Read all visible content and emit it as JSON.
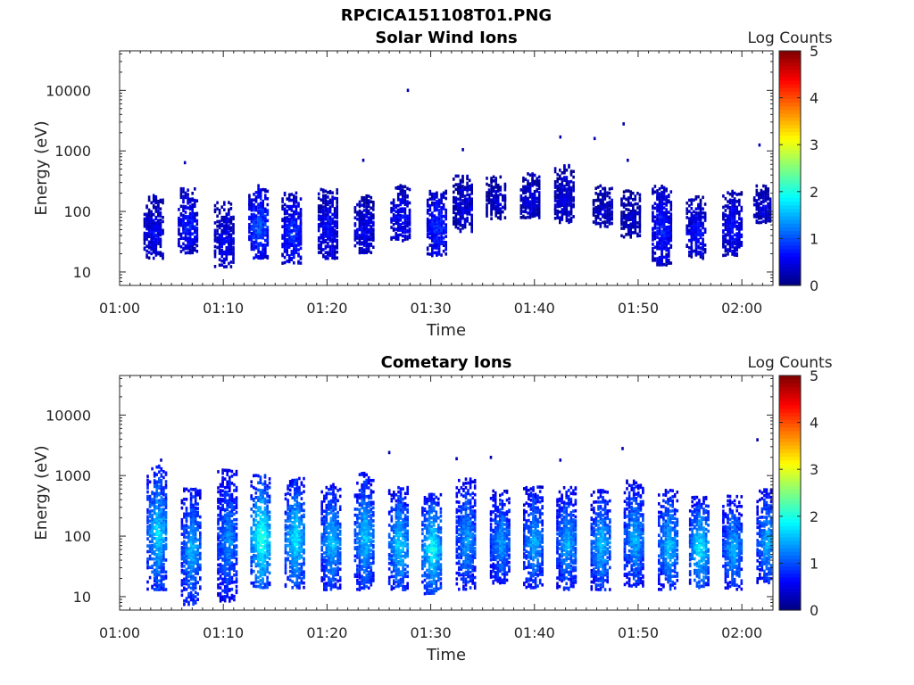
{
  "figure": {
    "title": "RPCICA151108T01.PNG"
  },
  "chart_data": [
    {
      "type": "heatmap",
      "title": "Solar Wind Ions",
      "xlabel": "Time",
      "ylabel": "Energy (eV)",
      "x_ticks": [
        "01:00",
        "01:10",
        "01:20",
        "01:30",
        "01:40",
        "01:50",
        "02:00"
      ],
      "x_range_minutes": [
        0,
        63
      ],
      "y_ticks": [
        "10",
        "100",
        "1000",
        "10000"
      ],
      "y_scale": "log",
      "y_range": [
        6,
        45000
      ],
      "colorbar": {
        "label": "Log Counts",
        "min": 0,
        "max": 5,
        "ticks": [
          "0",
          "1",
          "2",
          "3",
          "4",
          "5"
        ],
        "colormap": "jet"
      },
      "bursts": [
        {
          "t": 3.2,
          "emin": 18,
          "emax": 210,
          "peak": 0.6
        },
        {
          "t": 6.5,
          "emin": 22,
          "emax": 260,
          "peak": 0.8
        },
        {
          "t": 10.0,
          "emin": 13,
          "emax": 160,
          "peak": 0.6
        },
        {
          "t": 13.3,
          "emin": 18,
          "emax": 300,
          "peak": 1.1
        },
        {
          "t": 16.5,
          "emin": 15,
          "emax": 220,
          "peak": 0.9
        },
        {
          "t": 20.0,
          "emin": 18,
          "emax": 260,
          "peak": 0.7
        },
        {
          "t": 23.5,
          "emin": 22,
          "emax": 200,
          "peak": 0.6
        },
        {
          "t": 27.0,
          "emin": 35,
          "emax": 300,
          "peak": 0.7
        },
        {
          "t": 30.5,
          "emin": 20,
          "emax": 250,
          "peak": 0.9
        },
        {
          "t": 33.0,
          "emin": 50,
          "emax": 420,
          "peak": 0.5
        },
        {
          "t": 36.2,
          "emin": 80,
          "emax": 420,
          "peak": 0.4
        },
        {
          "t": 39.5,
          "emin": 80,
          "emax": 480,
          "peak": 0.5
        },
        {
          "t": 42.8,
          "emin": 70,
          "emax": 650,
          "peak": 0.5
        },
        {
          "t": 46.5,
          "emin": 60,
          "emax": 300,
          "peak": 0.4
        },
        {
          "t": 49.2,
          "emin": 40,
          "emax": 250,
          "peak": 0.4
        },
        {
          "t": 52.2,
          "emin": 14,
          "emax": 300,
          "peak": 0.8
        },
        {
          "t": 55.5,
          "emin": 18,
          "emax": 200,
          "peak": 0.7
        },
        {
          "t": 59.0,
          "emin": 20,
          "emax": 240,
          "peak": 0.7
        },
        {
          "t": 62.0,
          "emin": 70,
          "emax": 300,
          "peak": 0.5
        }
      ],
      "isolated_points": [
        {
          "t": 27.8,
          "e": 10000
        },
        {
          "t": 33.1,
          "e": 1050
        },
        {
          "t": 42.5,
          "e": 1700
        },
        {
          "t": 45.8,
          "e": 1600
        },
        {
          "t": 48.6,
          "e": 2800
        },
        {
          "t": 49.0,
          "e": 700
        },
        {
          "t": 61.7,
          "e": 1250
        },
        {
          "t": 23.5,
          "e": 700
        },
        {
          "t": 6.3,
          "e": 640
        }
      ]
    },
    {
      "type": "heatmap",
      "title": "Cometary Ions",
      "xlabel": "Time",
      "ylabel": "Energy (eV)",
      "x_ticks": [
        "01:00",
        "01:10",
        "01:20",
        "01:30",
        "01:40",
        "01:50",
        "02:00"
      ],
      "x_range_minutes": [
        0,
        63
      ],
      "y_ticks": [
        "10",
        "100",
        "1000",
        "10000"
      ],
      "y_scale": "log",
      "y_range": [
        6,
        45000
      ],
      "colorbar": {
        "label": "Log Counts",
        "min": 0,
        "max": 5,
        "ticks": [
          "0",
          "1",
          "2",
          "3",
          "4",
          "5"
        ],
        "colormap": "jet"
      },
      "bursts": [
        {
          "t": 3.5,
          "emin": 14,
          "emax": 1600,
          "peak": 1.8
        },
        {
          "t": 6.8,
          "emin": 8,
          "emax": 700,
          "peak": 1.6
        },
        {
          "t": 10.3,
          "emin": 9,
          "emax": 1400,
          "peak": 1.4
        },
        {
          "t": 13.5,
          "emin": 15,
          "emax": 1100,
          "peak": 2.2
        },
        {
          "t": 16.8,
          "emin": 15,
          "emax": 1000,
          "peak": 1.9
        },
        {
          "t": 20.3,
          "emin": 14,
          "emax": 800,
          "peak": 1.7
        },
        {
          "t": 23.5,
          "emin": 14,
          "emax": 1200,
          "peak": 1.7
        },
        {
          "t": 26.8,
          "emin": 14,
          "emax": 700,
          "peak": 1.8
        },
        {
          "t": 30.0,
          "emin": 12,
          "emax": 550,
          "peak": 2.0
        },
        {
          "t": 33.3,
          "emin": 14,
          "emax": 1000,
          "peak": 1.5
        },
        {
          "t": 36.6,
          "emin": 18,
          "emax": 650,
          "peak": 1.5
        },
        {
          "t": 39.8,
          "emin": 15,
          "emax": 700,
          "peak": 1.6
        },
        {
          "t": 43.0,
          "emin": 14,
          "emax": 700,
          "peak": 1.6
        },
        {
          "t": 46.3,
          "emin": 14,
          "emax": 650,
          "peak": 1.7
        },
        {
          "t": 49.5,
          "emin": 16,
          "emax": 900,
          "peak": 1.6
        },
        {
          "t": 52.8,
          "emin": 14,
          "emax": 650,
          "peak": 1.7
        },
        {
          "t": 55.8,
          "emin": 15,
          "emax": 500,
          "peak": 1.9
        },
        {
          "t": 59.0,
          "emin": 14,
          "emax": 500,
          "peak": 1.6
        },
        {
          "t": 62.3,
          "emin": 18,
          "emax": 650,
          "peak": 1.6
        }
      ],
      "isolated_points": [
        {
          "t": 26.0,
          "e": 2400
        },
        {
          "t": 32.5,
          "e": 1900
        },
        {
          "t": 35.8,
          "e": 2000
        },
        {
          "t": 42.5,
          "e": 1800
        },
        {
          "t": 48.5,
          "e": 2800
        },
        {
          "t": 61.5,
          "e": 3900
        },
        {
          "t": 4.0,
          "e": 1800
        }
      ]
    }
  ]
}
